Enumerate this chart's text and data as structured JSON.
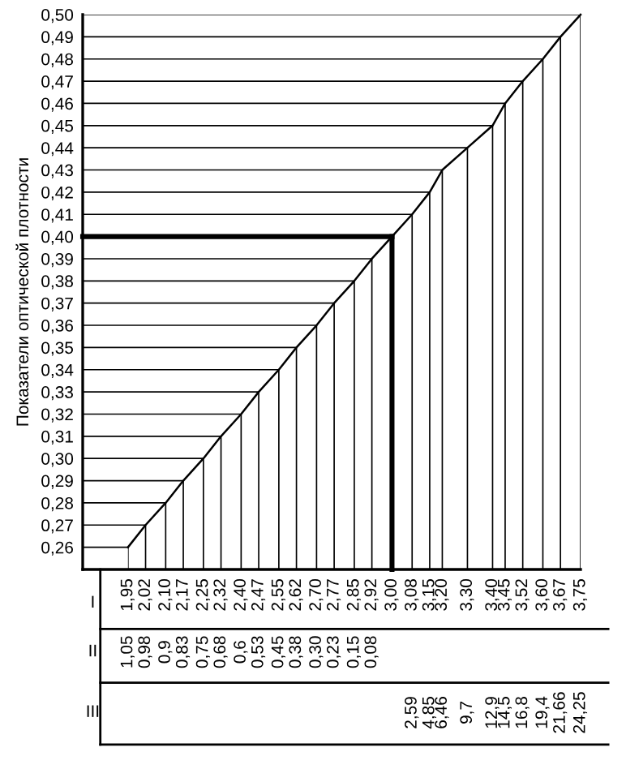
{
  "chart_data": {
    "type": "line",
    "ylabel": "Показатели оптической плотности",
    "x": [
      1.95,
      2.02,
      2.1,
      2.17,
      2.25,
      2.32,
      2.4,
      2.47,
      2.55,
      2.62,
      2.7,
      2.77,
      2.85,
      2.92,
      3.0,
      3.08,
      3.15,
      3.2,
      3.3,
      3.4,
      3.45,
      3.52,
      3.6,
      3.67,
      3.75
    ],
    "series": [
      {
        "color": "#000000",
        "values": [
          0.26,
          0.27,
          0.28,
          0.29,
          0.3,
          0.31,
          0.32,
          0.33,
          0.34,
          0.35,
          0.36,
          0.37,
          0.38,
          0.39,
          0.4,
          0.41,
          0.42,
          0.43,
          0.44,
          0.45,
          0.46,
          0.47,
          0.48,
          0.49,
          0.5
        ]
      }
    ],
    "ref_lines": [
      {
        "axis": "x",
        "value": 3.0,
        "color": "#000000"
      },
      {
        "axis": "y",
        "value": 0.4,
        "color": "#000000"
      }
    ],
    "xlim": [
      1.77,
      3.75
    ],
    "ylim": [
      0.25,
      0.5
    ],
    "xticks": [
      {
        "value": 1.95,
        "label": "1,95"
      },
      {
        "value": 2.02,
        "label": "2,02"
      },
      {
        "value": 2.1,
        "label": "2,10"
      },
      {
        "value": 2.17,
        "label": "2,17"
      },
      {
        "value": 2.25,
        "label": "2,25"
      },
      {
        "value": 2.32,
        "label": "2,32"
      },
      {
        "value": 2.4,
        "label": "2,40"
      },
      {
        "value": 2.47,
        "label": "2,47"
      },
      {
        "value": 2.55,
        "label": "2,55"
      },
      {
        "value": 2.62,
        "label": "2,62"
      },
      {
        "value": 2.7,
        "label": "2,70"
      },
      {
        "value": 2.77,
        "label": "2,77"
      },
      {
        "value": 2.85,
        "label": "2,85"
      },
      {
        "value": 2.92,
        "label": "2,92"
      },
      {
        "value": 3.0,
        "label": "3,00"
      },
      {
        "value": 3.08,
        "label": "3,08"
      },
      {
        "value": 3.15,
        "label": "3,15"
      },
      {
        "value": 3.2,
        "label": "3,20"
      },
      {
        "value": 3.3,
        "label": "3,30"
      },
      {
        "value": 3.4,
        "label": "3,40"
      },
      {
        "value": 3.45,
        "label": "3,45"
      },
      {
        "value": 3.52,
        "label": "3,52"
      },
      {
        "value": 3.6,
        "label": "3,60"
      },
      {
        "value": 3.67,
        "label": "3,67"
      },
      {
        "value": 3.75,
        "label": "3,75"
      }
    ],
    "yticks": [
      {
        "value": 0.26,
        "label": "0,26"
      },
      {
        "value": 0.27,
        "label": "0,27"
      },
      {
        "value": 0.28,
        "label": "0,28"
      },
      {
        "value": 0.29,
        "label": "0,29"
      },
      {
        "value": 0.3,
        "label": "0,30"
      },
      {
        "value": 0.31,
        "label": "0,31"
      },
      {
        "value": 0.32,
        "label": "0,32"
      },
      {
        "value": 0.33,
        "label": "0,33"
      },
      {
        "value": 0.34,
        "label": "0,34"
      },
      {
        "value": 0.35,
        "label": "0,35"
      },
      {
        "value": 0.36,
        "label": "0,36"
      },
      {
        "value": 0.37,
        "label": "0,37"
      },
      {
        "value": 0.38,
        "label": "0,38"
      },
      {
        "value": 0.39,
        "label": "0,39"
      },
      {
        "value": 0.4,
        "label": "0,40"
      },
      {
        "value": 0.41,
        "label": "0,41"
      },
      {
        "value": 0.42,
        "label": "0,42"
      },
      {
        "value": 0.43,
        "label": "0,43"
      },
      {
        "value": 0.44,
        "label": "0,44"
      },
      {
        "value": 0.45,
        "label": "0,45"
      },
      {
        "value": 0.46,
        "label": "0,46"
      },
      {
        "value": 0.47,
        "label": "0,47"
      },
      {
        "value": 0.48,
        "label": "0,48"
      },
      {
        "value": 0.49,
        "label": "0,49"
      },
      {
        "value": 0.5,
        "label": "0,50"
      }
    ],
    "grid": true,
    "annotations": [
      "I",
      "II",
      "III",
      "1,05",
      "0,98",
      "0,9",
      "0,83",
      "0,75",
      "0,68",
      "0,6",
      "0,53",
      "0,45",
      "0,38",
      "0,30",
      "0,23",
      "0,15",
      "0,08",
      "2,59",
      "4,85",
      "6,46",
      "9,7",
      "12,9",
      "14,5",
      "16,8",
      "19,4",
      "21,66",
      "24,25"
    ]
  }
}
